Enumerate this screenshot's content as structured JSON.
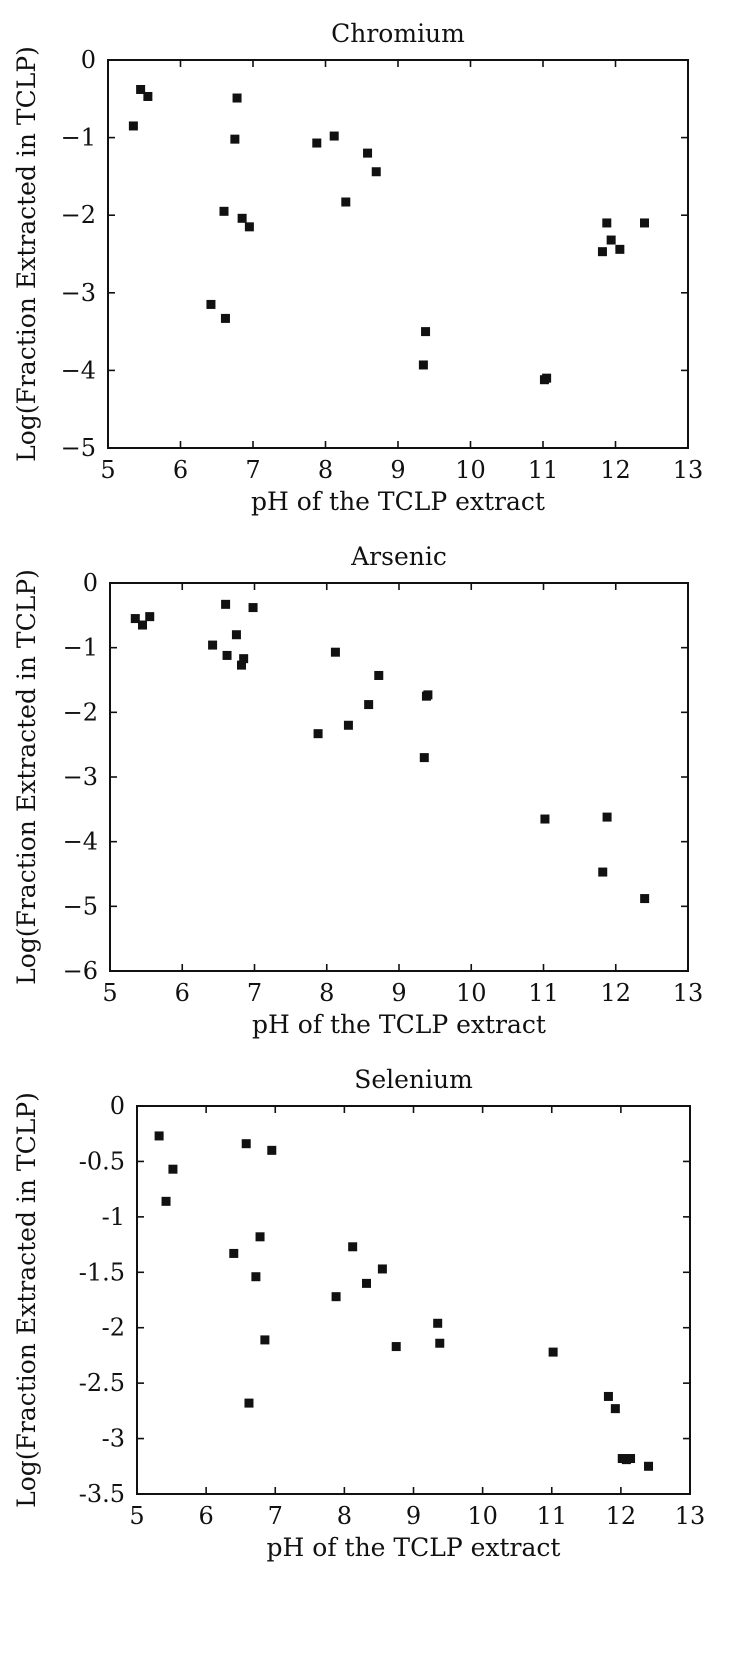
{
  "chart_data": [
    {
      "type": "scatter",
      "title": "Chromium",
      "xlabel": "pH of the TCLP extract",
      "ylabel": "Log(Fraction Extracted in TCLP)",
      "xlim": [
        5,
        13
      ],
      "ylim": [
        -5,
        0
      ],
      "xticks": [
        "5",
        "6",
        "7",
        "8",
        "9",
        "10",
        "11",
        "12",
        "13"
      ],
      "yticks": [
        "0",
        "−1",
        "−2",
        "−3",
        "−4",
        "−5"
      ],
      "grid": false,
      "marker": "square",
      "points": [
        [
          5.35,
          -0.85
        ],
        [
          5.45,
          -0.38
        ],
        [
          5.55,
          -0.47
        ],
        [
          6.42,
          -3.15
        ],
        [
          6.6,
          -1.95
        ],
        [
          6.62,
          -3.33
        ],
        [
          6.75,
          -1.02
        ],
        [
          6.78,
          -0.49
        ],
        [
          6.85,
          -2.04
        ],
        [
          6.95,
          -2.15
        ],
        [
          7.88,
          -1.07
        ],
        [
          8.12,
          -0.98
        ],
        [
          8.28,
          -1.83
        ],
        [
          8.58,
          -1.2
        ],
        [
          8.7,
          -1.44
        ],
        [
          9.35,
          -3.93
        ],
        [
          9.38,
          -3.5
        ],
        [
          11.02,
          -4.12
        ],
        [
          11.05,
          -4.1
        ],
        [
          11.82,
          -2.47
        ],
        [
          11.88,
          -2.1
        ],
        [
          11.94,
          -2.32
        ],
        [
          12.06,
          -2.44
        ],
        [
          12.4,
          -2.1
        ]
      ]
    },
    {
      "type": "scatter",
      "title": "Arsenic",
      "xlabel": "pH of the TCLP extract",
      "ylabel": "Log(Fraction Extracted in TCLP)",
      "xlim": [
        5,
        13
      ],
      "ylim": [
        -6,
        0
      ],
      "xticks": [
        "5",
        "6",
        "7",
        "8",
        "9",
        "10",
        "11",
        "12",
        "13"
      ],
      "yticks": [
        "0",
        "−1",
        "−2",
        "−3",
        "−4",
        "−5",
        "−6"
      ],
      "grid": false,
      "marker": "square",
      "points": [
        [
          5.35,
          -0.55
        ],
        [
          5.45,
          -0.65
        ],
        [
          5.55,
          -0.52
        ],
        [
          6.42,
          -0.96
        ],
        [
          6.6,
          -0.33
        ],
        [
          6.62,
          -1.12
        ],
        [
          6.75,
          -0.8
        ],
        [
          6.82,
          -1.27
        ],
        [
          6.85,
          -1.17
        ],
        [
          6.98,
          -0.38
        ],
        [
          7.88,
          -2.33
        ],
        [
          8.12,
          -1.07
        ],
        [
          8.3,
          -2.2
        ],
        [
          8.58,
          -1.88
        ],
        [
          8.72,
          -1.43
        ],
        [
          9.35,
          -2.7
        ],
        [
          9.38,
          -1.75
        ],
        [
          9.4,
          -1.73
        ],
        [
          11.02,
          -3.65
        ],
        [
          11.82,
          -4.47
        ],
        [
          11.88,
          -3.62
        ],
        [
          12.4,
          -4.88
        ]
      ]
    },
    {
      "type": "scatter",
      "title": "Selenium",
      "xlabel": "pH of the TCLP extract",
      "ylabel": "Log(Fraction Extracted in TCLP)",
      "xlim": [
        5,
        13
      ],
      "ylim": [
        -3.5,
        0
      ],
      "xticks": [
        "5",
        "6",
        "7",
        "8",
        "9",
        "10",
        "11",
        "12",
        "13"
      ],
      "yticks": [
        "0",
        "-0.5",
        "-1",
        "-1.5",
        "-2",
        "-2.5",
        "-3",
        "-3.5"
      ],
      "grid": false,
      "marker": "square",
      "points": [
        [
          5.32,
          -0.27
        ],
        [
          5.42,
          -0.86
        ],
        [
          5.52,
          -0.57
        ],
        [
          6.4,
          -1.33
        ],
        [
          6.58,
          -0.34
        ],
        [
          6.62,
          -2.68
        ],
        [
          6.72,
          -1.54
        ],
        [
          6.78,
          -1.18
        ],
        [
          6.85,
          -2.11
        ],
        [
          6.95,
          -0.4
        ],
        [
          7.88,
          -1.72
        ],
        [
          8.12,
          -1.27
        ],
        [
          8.32,
          -1.6
        ],
        [
          8.55,
          -1.47
        ],
        [
          8.75,
          -2.17
        ],
        [
          9.35,
          -1.96
        ],
        [
          9.38,
          -2.14
        ],
        [
          11.02,
          -2.22
        ],
        [
          11.82,
          -2.62
        ],
        [
          11.92,
          -2.73
        ],
        [
          12.02,
          -3.18
        ],
        [
          12.08,
          -3.19
        ],
        [
          12.14,
          -3.18
        ],
        [
          12.4,
          -3.25
        ]
      ]
    }
  ]
}
